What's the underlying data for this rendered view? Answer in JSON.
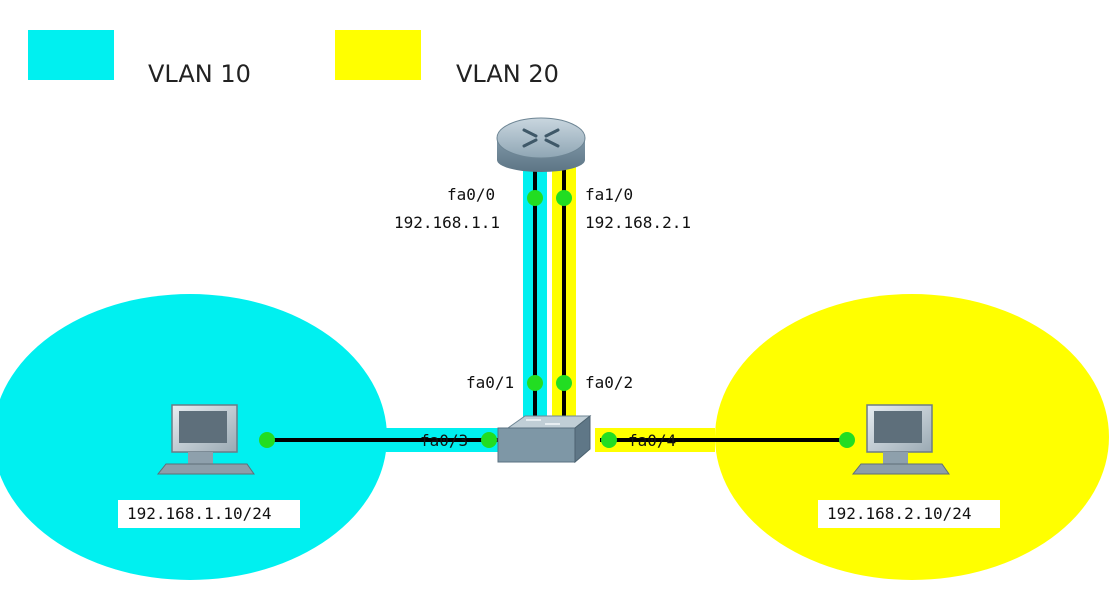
{
  "legend": [
    {
      "label": "VLAN 10",
      "color": "#00F0F0"
    },
    {
      "label": "VLAN 20",
      "color": "#FFFF00"
    }
  ],
  "router": {
    "ports": [
      {
        "name": "fa0/0",
        "ip": "192.168.1.1"
      },
      {
        "name": "fa1/0",
        "ip": "192.168.2.1"
      }
    ]
  },
  "switch": {
    "uplink_ports": [
      "fa0/1",
      "fa0/2"
    ],
    "access_ports": [
      "fa0/3",
      "fa0/4"
    ]
  },
  "hosts": [
    {
      "ip": "192.168.1.10/24",
      "vlan_color": "#00F0F0"
    },
    {
      "ip": "192.168.2.10/24",
      "vlan_color": "#FFFF00"
    }
  ],
  "colors": {
    "vlan10": "#00F0F0",
    "vlan20": "#FFFF00",
    "link": "#000000",
    "port_dot": "#22DD22"
  }
}
